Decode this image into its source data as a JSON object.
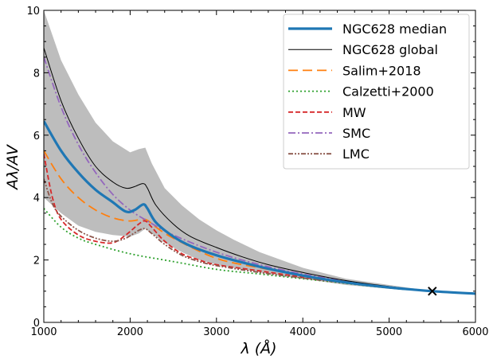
{
  "chart_data": {
    "type": "line",
    "xlabel": "λ (Å)",
    "ylabel": "Aλ/AV",
    "xlim": [
      1000,
      6000
    ],
    "ylim": [
      0,
      10
    ],
    "xticks": [
      1000,
      2000,
      3000,
      4000,
      5000,
      6000
    ],
    "yticks": [
      0,
      2,
      4,
      6,
      8,
      10
    ],
    "xtick_labels": [
      "1000",
      "2000",
      "3000",
      "4000",
      "5000",
      "6000"
    ],
    "ytick_labels": [
      "0",
      "2",
      "4",
      "6",
      "8",
      "10"
    ],
    "grid": false,
    "legend_position": "top-right",
    "band": {
      "x": [
        1000,
        1200,
        1400,
        1600,
        1800,
        2000,
        2100,
        2175,
        2250,
        2400,
        2600,
        2800,
        3000,
        3200,
        3500,
        4000,
        4500,
        5000,
        5500,
        6000
      ],
      "upper": [
        10.0,
        8.4,
        7.3,
        6.4,
        5.8,
        5.45,
        5.55,
        5.6,
        5.1,
        4.3,
        3.75,
        3.3,
        2.95,
        2.65,
        2.25,
        1.75,
        1.4,
        1.2,
        1.0,
        0.95
      ],
      "lower": [
        4.0,
        3.5,
        3.1,
        2.9,
        2.8,
        2.75,
        2.85,
        3.0,
        2.85,
        2.55,
        2.25,
        2.0,
        1.85,
        1.75,
        1.6,
        1.4,
        1.2,
        1.08,
        1.0,
        0.9
      ]
    },
    "series": [
      {
        "name": "NGC628 median",
        "color": "#1f77b4",
        "dash": "solid",
        "x": [
          1000,
          1200,
          1400,
          1600,
          1800,
          1950,
          2050,
          2150,
          2200,
          2300,
          2500,
          2700,
          3000,
          3300,
          3600,
          4000,
          4500,
          5000,
          5500,
          6000
        ],
        "y": [
          6.45,
          5.5,
          4.8,
          4.25,
          3.85,
          3.55,
          3.6,
          3.78,
          3.65,
          3.2,
          2.75,
          2.45,
          2.15,
          1.92,
          1.72,
          1.5,
          1.28,
          1.12,
          1.0,
          0.92
        ]
      },
      {
        "name": "NGC628 global",
        "color": "#000000",
        "dash": "solid",
        "x": [
          1000,
          1200,
          1400,
          1600,
          1800,
          1950,
          2050,
          2150,
          2200,
          2300,
          2500,
          2700,
          3000,
          3300,
          3600,
          4000,
          4500,
          5000,
          5500,
          6000
        ],
        "y": [
          8.8,
          7.1,
          5.9,
          5.0,
          4.5,
          4.3,
          4.35,
          4.45,
          4.3,
          3.75,
          3.15,
          2.75,
          2.4,
          2.1,
          1.85,
          1.6,
          1.34,
          1.15,
          1.0,
          0.92
        ]
      },
      {
        "name": "Salim+2018",
        "color": "#ff7f0e",
        "dash": "long",
        "x": [
          1000,
          1200,
          1400,
          1600,
          1800,
          2000,
          2175,
          2300,
          2500,
          3000,
          3500,
          4000,
          4500,
          5000,
          5500,
          6000
        ],
        "y": [
          5.5,
          4.6,
          4.0,
          3.6,
          3.35,
          3.25,
          3.3,
          3.05,
          2.7,
          2.05,
          1.75,
          1.5,
          1.28,
          1.12,
          1.0,
          0.92
        ]
      },
      {
        "name": "Calzetti+2000",
        "color": "#2ca02c",
        "dash": "dotted",
        "x": [
          1000,
          1200,
          1400,
          1600,
          2000,
          2500,
          3000,
          3500,
          4000,
          4500,
          5000,
          5500,
          6000
        ],
        "y": [
          3.65,
          3.05,
          2.7,
          2.5,
          2.2,
          1.95,
          1.7,
          1.55,
          1.4,
          1.25,
          1.1,
          1.0,
          0.92
        ]
      },
      {
        "name": "MW",
        "color": "#d62728",
        "dash": "dashed",
        "x": [
          1000,
          1100,
          1200,
          1400,
          1600,
          1800,
          1950,
          2100,
          2175,
          2250,
          2400,
          2600,
          2800,
          3000,
          3500,
          4000,
          4500,
          5000,
          5500,
          6000
        ],
        "y": [
          5.4,
          4.0,
          3.3,
          2.8,
          2.6,
          2.55,
          2.8,
          3.15,
          3.25,
          3.05,
          2.6,
          2.2,
          2.0,
          1.85,
          1.65,
          1.45,
          1.28,
          1.12,
          1.0,
          0.92
        ]
      },
      {
        "name": "SMC",
        "color": "#9467bd",
        "dash": "dashdot",
        "x": [
          1000,
          1200,
          1400,
          1600,
          1800,
          2000,
          2200,
          2500,
          3000,
          3500,
          4000,
          4500,
          5000,
          5500,
          6000
        ],
        "y": [
          8.5,
          6.9,
          5.7,
          4.8,
          4.1,
          3.6,
          3.25,
          2.8,
          2.25,
          1.85,
          1.55,
          1.32,
          1.12,
          1.0,
          0.92
        ]
      },
      {
        "name": "LMC",
        "color": "#8c564b",
        "dash": "dashdotdot",
        "x": [
          1000,
          1100,
          1200,
          1400,
          1600,
          1800,
          1950,
          2100,
          2175,
          2250,
          2400,
          2600,
          2800,
          3000,
          3500,
          4000,
          4500,
          5000,
          5500,
          6000
        ],
        "y": [
          4.6,
          3.8,
          3.4,
          2.95,
          2.7,
          2.6,
          2.7,
          2.95,
          3.0,
          2.85,
          2.5,
          2.15,
          1.95,
          1.82,
          1.6,
          1.42,
          1.26,
          1.12,
          1.0,
          0.92
        ]
      }
    ],
    "markers": [
      {
        "x": 5500,
        "y": 1.0,
        "symbol": "x",
        "color": "#000000"
      }
    ]
  }
}
